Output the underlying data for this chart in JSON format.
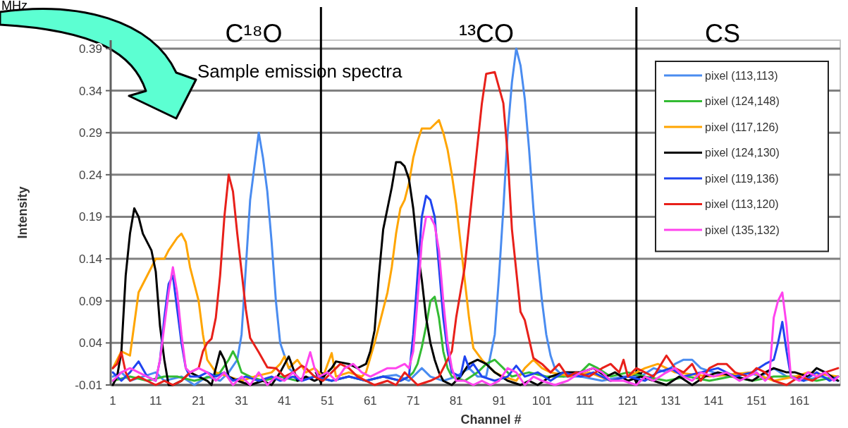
{
  "chart_data": {
    "type": "line",
    "xlabel": "Channel #",
    "ylabel": "Intensity",
    "xlim": [
      0.5,
      170.5
    ],
    "xticks": [
      1,
      11,
      21,
      31,
      41,
      51,
      61,
      71,
      81,
      91,
      101,
      111,
      121,
      131,
      141,
      151,
      161
    ],
    "ylim": [
      -0.01,
      0.4
    ],
    "yticks": [
      -0.01,
      0.04,
      0.09,
      0.14,
      0.19,
      0.24,
      0.29,
      0.34,
      0.39
    ],
    "grid": "y",
    "legend": "top right",
    "ref_lines": [
      {
        "axis": "x",
        "value": 49.5,
        "color": "#000000"
      },
      {
        "axis": "x",
        "value": 123,
        "color": "#000000"
      }
    ],
    "annotations": [
      "C¹⁸O",
      "¹³CO",
      "CS",
      "Sample emission spectra",
      "MHz"
    ],
    "series": [
      {
        "name": "pixel (113,113)",
        "color": "#4a8cf0",
        "x": [
          1,
          3,
          5,
          8,
          11,
          13,
          17,
          20,
          23,
          26,
          28,
          30,
          31,
          32,
          33,
          34,
          35,
          36,
          37,
          38,
          39,
          40,
          41,
          42,
          43,
          45,
          48,
          52,
          56,
          60,
          64,
          67,
          70,
          73,
          75,
          78,
          81,
          84,
          86,
          88,
          90,
          91,
          92,
          93,
          94,
          95,
          96,
          97,
          98,
          99,
          100,
          101,
          102,
          103,
          104,
          106,
          110,
          115,
          120,
          124,
          127,
          130,
          132,
          134,
          136,
          138,
          141,
          145,
          149,
          152,
          155,
          158,
          162,
          166,
          170
        ],
        "values": [
          0,
          0.005,
          -0.005,
          0,
          0.005,
          -0.005,
          0,
          -0.01,
          0,
          -0.005,
          0.005,
          0.02,
          0.05,
          0.13,
          0.21,
          0.25,
          0.29,
          0.26,
          0.22,
          0.16,
          0.09,
          0.04,
          0.025,
          0.01,
          0.005,
          -0.005,
          0,
          -0.005,
          0,
          -0.005,
          0,
          0.002,
          -0.005,
          0.01,
          0,
          -0.005,
          0,
          0.01,
          0,
          0,
          0.05,
          0.12,
          0.2,
          0.29,
          0.35,
          0.39,
          0.37,
          0.33,
          0.27,
          0.2,
          0.14,
          0.09,
          0.05,
          0.025,
          0.01,
          0,
          0,
          -0.005,
          0,
          0,
          0.01,
          0.005,
          0.015,
          0.02,
          0.02,
          0.01,
          0.005,
          0,
          0.005,
          0,
          0.01,
          0,
          -0.005,
          0,
          -0.005
        ]
      },
      {
        "name": "pixel (124,148)",
        "color": "#33bb33",
        "x": [
          1,
          5,
          9,
          13,
          16,
          20,
          24,
          26,
          28,
          29,
          30,
          31,
          33,
          36,
          40,
          44,
          48,
          52,
          56,
          60,
          64,
          68,
          70,
          71,
          72,
          73,
          74,
          75,
          76,
          77,
          78,
          79,
          80,
          83,
          86,
          88,
          90,
          92,
          94,
          98,
          102,
          106,
          110,
          112,
          114,
          117,
          121,
          125,
          130,
          135,
          140,
          145,
          150,
          155,
          160,
          165,
          170
        ],
        "values": [
          -0.005,
          0,
          -0.005,
          0,
          0,
          -0.005,
          0,
          0.005,
          0.02,
          0.03,
          0.02,
          0.005,
          0,
          -0.005,
          0,
          -0.005,
          0,
          -0.005,
          0,
          -0.005,
          0,
          -0.005,
          0,
          0.005,
          0.015,
          0.035,
          0.06,
          0.09,
          0.095,
          0.07,
          0.03,
          0.01,
          0,
          -0.005,
          0.005,
          0.015,
          0.02,
          0.01,
          0,
          0.005,
          0,
          0,
          0.005,
          0.015,
          0.01,
          0,
          0.005,
          0,
          -0.005,
          0,
          -0.005,
          0,
          -0.005,
          0,
          0,
          -0.005,
          0
        ]
      },
      {
        "name": "pixel (117,126)",
        "color": "#ffa500",
        "x": [
          1,
          3,
          5,
          7,
          9,
          11,
          13,
          14,
          16,
          17,
          18,
          19,
          20,
          21,
          22,
          23,
          25,
          28,
          31,
          34,
          38,
          40,
          41,
          42,
          44,
          46,
          48,
          50,
          52,
          53,
          56,
          59,
          60,
          62,
          63,
          64,
          65,
          66,
          67,
          68,
          69,
          70,
          71,
          72,
          73,
          74,
          75,
          76,
          77,
          78,
          79,
          80,
          81,
          82,
          83,
          84,
          85,
          87,
          90,
          92,
          95,
          97,
          99,
          101,
          103,
          108,
          112,
          117,
          121,
          125,
          128,
          132,
          140,
          150,
          155,
          160,
          163,
          170
        ],
        "values": [
          0.01,
          0.03,
          0.025,
          0.1,
          0.12,
          0.14,
          0.14,
          0.15,
          0.165,
          0.17,
          0.16,
          0.13,
          0.11,
          0.09,
          0.05,
          0.02,
          0.005,
          0,
          -0.005,
          0,
          0.005,
          0.015,
          0.024,
          0.01,
          0.02,
          0.005,
          0.01,
          0,
          0.028,
          0,
          0.005,
          0,
          0.005,
          0.04,
          0.06,
          0.08,
          0.1,
          0.13,
          0.17,
          0.2,
          0.21,
          0.23,
          0.26,
          0.28,
          0.295,
          0.295,
          0.295,
          0.3,
          0.305,
          0.29,
          0.27,
          0.24,
          0.205,
          0.16,
          0.115,
          0.07,
          0.034,
          0.02,
          0.005,
          0,
          -0.005,
          0.01,
          0.02,
          0.01,
          0.005,
          0,
          0.005,
          -0.005,
          0,
          0.01,
          0.015,
          0.005,
          0,
          0.005,
          -0.005,
          0,
          0.005,
          0
        ]
      },
      {
        "name": "pixel (124,130)",
        "color": "#000000",
        "x": [
          1,
          2,
          3,
          4,
          5,
          6,
          7,
          8,
          10,
          11,
          12,
          13,
          14,
          15,
          17,
          19,
          21,
          23,
          24,
          25,
          26,
          27,
          28,
          30,
          33,
          36,
          38,
          40,
          42,
          43,
          44,
          46,
          48,
          50,
          52,
          53,
          56,
          58,
          60,
          61,
          62,
          63,
          64,
          65,
          66,
          67,
          68,
          69,
          70,
          71,
          72,
          73,
          74,
          75,
          76,
          77,
          78,
          80,
          82,
          84,
          86,
          88,
          90,
          93,
          96,
          98,
          100,
          103,
          106,
          110,
          113,
          116,
          118,
          121,
          124,
          127,
          130,
          133,
          136,
          139,
          142,
          146,
          150,
          153,
          155,
          158,
          160,
          163,
          165,
          167,
          170
        ],
        "values": [
          -0.01,
          0,
          0.03,
          0.12,
          0.17,
          0.2,
          0.19,
          0.17,
          0.15,
          0.125,
          0.06,
          0.02,
          -0.01,
          -0.01,
          -0.005,
          0.005,
          0,
          -0.005,
          -0.01,
          0.01,
          0.03,
          0.02,
          0,
          -0.005,
          -0.01,
          -0.005,
          -0.01,
          0.005,
          0.024,
          0.01,
          -0.005,
          0,
          -0.005,
          0,
          0.01,
          0.018,
          0.015,
          0.01,
          0.015,
          0.03,
          0.055,
          0.12,
          0.175,
          0.2,
          0.225,
          0.255,
          0.255,
          0.25,
          0.235,
          0.2,
          0.15,
          0.115,
          0.07,
          0.04,
          0.02,
          0.005,
          -0.005,
          -0.01,
          0,
          0.015,
          0.02,
          0.015,
          0.005,
          -0.005,
          -0.01,
          -0.005,
          -0.01,
          0,
          0.005,
          0.005,
          0.01,
          0,
          0.005,
          -0.005,
          0,
          -0.005,
          -0.01,
          0,
          -0.01,
          0,
          0.005,
          0,
          -0.005,
          0.005,
          0.01,
          0.005,
          0.005,
          0,
          0.01,
          0.005,
          -0.005
        ]
      },
      {
        "name": "pixel (119,136)",
        "color": "#1f44f0",
        "x": [
          1,
          3,
          5,
          7,
          9,
          11,
          12,
          13,
          14,
          15,
          16,
          17,
          18,
          19,
          21,
          23,
          25,
          27,
          29,
          32,
          35,
          38,
          40,
          43,
          45,
          48,
          52,
          56,
          60,
          64,
          68,
          70,
          71,
          72,
          73,
          74,
          75,
          76,
          77,
          78,
          79,
          80,
          82,
          83,
          84,
          85,
          87,
          90,
          93,
          95,
          97,
          100,
          103,
          106,
          110,
          113,
          117,
          121,
          125,
          128,
          131,
          134,
          138,
          142,
          146,
          150,
          153,
          155,
          156,
          157,
          158,
          159,
          162,
          165,
          168,
          170
        ],
        "values": [
          0.005,
          -0.005,
          0.005,
          0.018,
          0,
          -0.005,
          0.02,
          0.07,
          0.11,
          0.12,
          0.08,
          0.04,
          0.01,
          0,
          0,
          0.005,
          0,
          0.005,
          -0.005,
          0,
          -0.005,
          0,
          -0.005,
          0,
          -0.005,
          0,
          -0.005,
          0,
          -0.005,
          0,
          -0.005,
          0,
          0.05,
          0.12,
          0.19,
          0.215,
          0.21,
          0.19,
          0.13,
          0.07,
          0.03,
          0.005,
          0,
          0.024,
          0.01,
          0.015,
          0,
          -0.005,
          0,
          0.013,
          0,
          0.005,
          -0.005,
          0.005,
          0,
          0.005,
          -0.005,
          0,
          -0.005,
          0.005,
          0.01,
          0,
          0.005,
          0.01,
          0,
          0.005,
          0.015,
          0.02,
          0.04,
          0.065,
          0.03,
          0,
          -0.005,
          0.005,
          -0.005,
          0
        ]
      },
      {
        "name": "pixel (113,120)",
        "color": "#e8201a",
        "x": [
          1,
          2,
          3,
          4,
          5,
          7,
          9,
          11,
          13,
          15,
          17,
          19,
          21,
          22,
          23,
          24,
          25,
          26,
          27,
          28,
          29,
          30,
          31,
          32,
          33,
          35,
          37,
          39,
          41,
          43,
          45,
          46,
          48,
          50,
          52,
          54,
          56,
          58,
          60,
          62,
          65,
          67,
          69,
          70,
          72,
          75,
          77,
          79,
          80,
          81,
          83,
          85,
          87,
          88,
          90,
          92,
          93,
          94,
          96,
          97,
          99,
          101,
          103,
          105,
          107,
          109,
          112,
          115,
          117,
          119,
          120,
          121,
          123,
          125,
          127,
          130,
          132,
          134,
          136,
          138,
          140,
          142,
          144,
          146,
          149,
          151,
          153,
          155,
          158,
          161,
          164,
          167,
          170
        ],
        "values": [
          0.01,
          0.015,
          0.029,
          0.005,
          -0.005,
          0,
          -0.005,
          -0.01,
          -0.005,
          -0.01,
          -0.005,
          0.005,
          0.01,
          0.03,
          0.04,
          0.045,
          0.07,
          0.12,
          0.19,
          0.24,
          0.22,
          0.17,
          0.125,
          0.08,
          0.046,
          0.029,
          0.011,
          0.01,
          0,
          0.005,
          0.013,
          0.01,
          0,
          -0.005,
          0.005,
          0.015,
          0.01,
          0,
          -0.005,
          -0.01,
          -0.005,
          -0.01,
          0.005,
          0,
          -0.01,
          -0.005,
          0,
          0.02,
          0.03,
          0.07,
          0.13,
          0.229,
          0.325,
          0.36,
          0.362,
          0.325,
          0.264,
          0.175,
          0.077,
          0.067,
          0.022,
          0.015,
          0.005,
          0.015,
          0,
          0.005,
          0,
          0.01,
          0.015,
          0.005,
          0.02,
          0,
          0.01,
          0.005,
          0,
          0.025,
          0.01,
          0.005,
          0.015,
          -0.005,
          0.01,
          0.015,
          0.015,
          0.005,
          0,
          0.01,
          0.005,
          -0.005,
          -0.01,
          0,
          -0.005,
          0.005,
          0.01
        ]
      },
      {
        "name": "pixel (135,132)",
        "color": "#ff44ee",
        "x": [
          1,
          3,
          5,
          7,
          9,
          11,
          12,
          13,
          14,
          15,
          16,
          17,
          18,
          19,
          21,
          23,
          25,
          27,
          29,
          31,
          33,
          35,
          37,
          39,
          41,
          43,
          45,
          47,
          48,
          49,
          51,
          53,
          55,
          57,
          59,
          61,
          63,
          65,
          67,
          69,
          70,
          71,
          72,
          73,
          74,
          75,
          76,
          77,
          78,
          79,
          80,
          81,
          83,
          85,
          87,
          89,
          91,
          93,
          95,
          97,
          99,
          101,
          104,
          107,
          110,
          113,
          115,
          117,
          120,
          123,
          125,
          127,
          130,
          132,
          134,
          136,
          138,
          141,
          144,
          147,
          149,
          151,
          153,
          154,
          155,
          156,
          157,
          158,
          159,
          161,
          163,
          165,
          167,
          169,
          170
        ],
        "values": [
          -0.005,
          0.005,
          0.01,
          0.005,
          0,
          -0.005,
          0.02,
          0.06,
          0.1,
          0.13,
          0.1,
          0.05,
          0.01,
          0.005,
          0.01,
          0.005,
          -0.005,
          0.005,
          -0.01,
          0,
          -0.01,
          0.005,
          -0.01,
          0,
          -0.005,
          0.005,
          -0.005,
          0.029,
          0.01,
          0,
          0.005,
          -0.005,
          0.01,
          0.015,
          0.005,
          0,
          0.005,
          0.01,
          0.01,
          0.015,
          0.01,
          0.03,
          0.09,
          0.16,
          0.19,
          0.19,
          0.18,
          0.15,
          0.09,
          0.04,
          0.01,
          -0.005,
          -0.005,
          -0.01,
          -0.005,
          -0.01,
          -0.005,
          0.01,
          0.005,
          -0.01,
          0,
          -0.005,
          -0.01,
          -0.005,
          0.005,
          0.01,
          0.005,
          -0.005,
          -0.005,
          -0.01,
          0,
          -0.005,
          0.005,
          0.01,
          0,
          -0.005,
          0.005,
          0,
          0.005,
          -0.005,
          0,
          0.005,
          -0.005,
          0,
          0.07,
          0.09,
          0.1,
          0.06,
          0,
          -0.005,
          0.005,
          0,
          0.005,
          -0.005,
          0
        ]
      }
    ]
  }
}
